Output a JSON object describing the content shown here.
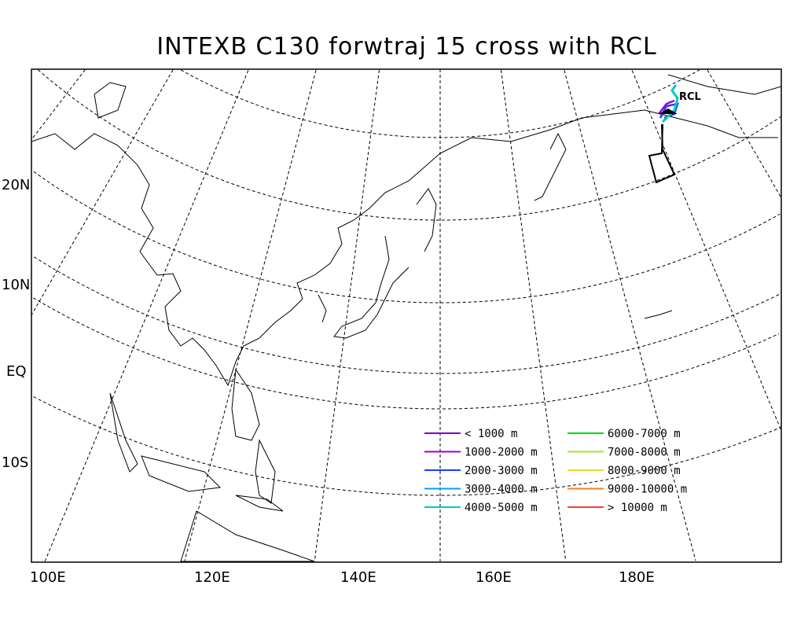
{
  "title": "INTEXB C130 forwtraj 15 cross with RCL",
  "lat_labels": [
    "20N",
    "10N",
    "EQ",
    "10S"
  ],
  "lon_labels": [
    "100E",
    "120E",
    "140E",
    "160E",
    "180E"
  ],
  "station_label": "RCL",
  "legend": [
    {
      "label": "< 1000 m",
      "color": "#7f00d4"
    },
    {
      "label": "1000-2000 m",
      "color": "#a000c8"
    },
    {
      "label": "2000-3000 m",
      "color": "#1e3cff"
    },
    {
      "label": "3000-4000 m",
      "color": "#00a0ff"
    },
    {
      "label": "4000-5000 m",
      "color": "#00c8c8"
    },
    {
      "label": "6000-7000 m",
      "color": "#00dc00"
    },
    {
      "label": "7000-8000 m",
      "color": "#a0e632"
    },
    {
      "label": "8000-9000 m",
      "color": "#e6dc32"
    },
    {
      "label": "9000-10000 m",
      "color": "#f08228"
    },
    {
      "label": "> 10000 m",
      "color": "#fa3c3c"
    }
  ]
}
